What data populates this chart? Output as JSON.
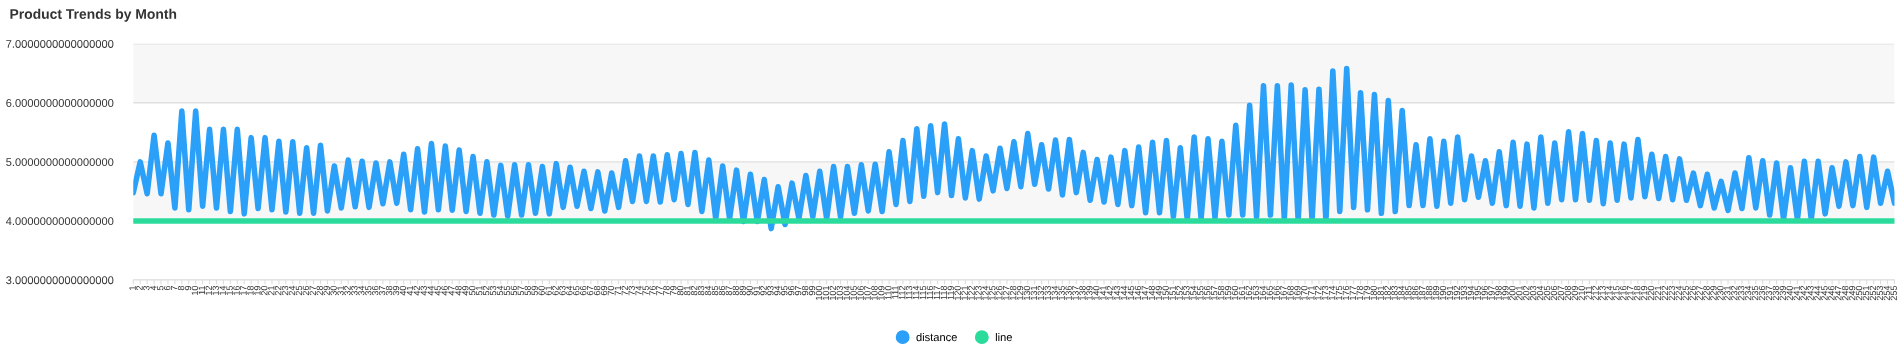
{
  "chart_data": {
    "type": "line",
    "title": "Product Trends by Month",
    "categories": [
      "1",
      "2",
      "3",
      "4",
      "5",
      "6",
      "7",
      "8",
      "9",
      "10",
      "11",
      "12",
      "13",
      "14",
      "15",
      "16",
      "17",
      "18",
      "19",
      "20",
      "21",
      "22",
      "23",
      "24",
      "25",
      "26",
      "27",
      "28",
      "29",
      "30",
      "31",
      "32",
      "33",
      "34",
      "35",
      "36",
      "37",
      "38",
      "39",
      "40",
      "41",
      "42",
      "43",
      "44",
      "45",
      "46",
      "47",
      "48",
      "49",
      "50",
      "51",
      "52",
      "53",
      "54",
      "55",
      "56",
      "57",
      "58",
      "59",
      "60",
      "61",
      "62",
      "63",
      "64",
      "65",
      "66",
      "67",
      "68",
      "69",
      "70",
      "71",
      "72",
      "73",
      "74",
      "75",
      "76",
      "77",
      "78",
      "79",
      "80",
      "81",
      "82",
      "83",
      "84",
      "85",
      "86",
      "87",
      "88",
      "89",
      "90",
      "91",
      "92",
      "93",
      "94",
      "95",
      "96",
      "97",
      "98",
      "99",
      "100",
      "101",
      "102",
      "103",
      "104",
      "105",
      "106",
      "107",
      "108",
      "109",
      "110",
      "111",
      "112",
      "113",
      "114",
      "115",
      "116",
      "117",
      "118",
      "119",
      "120",
      "121",
      "122",
      "123",
      "124",
      "125",
      "126",
      "127",
      "128",
      "129",
      "130",
      "131",
      "132",
      "133",
      "134",
      "135",
      "136",
      "137",
      "138",
      "139",
      "140",
      "141",
      "142",
      "143",
      "144",
      "145",
      "146",
      "147",
      "148",
      "149",
      "150",
      "151",
      "152",
      "153",
      "154",
      "155",
      "156",
      "157",
      "158",
      "159",
      "160",
      "161",
      "162",
      "163",
      "164",
      "165",
      "166",
      "167",
      "168",
      "169",
      "170",
      "171",
      "172",
      "173",
      "174",
      "175",
      "176",
      "177",
      "178",
      "179",
      "180",
      "181",
      "182",
      "183",
      "184",
      "185",
      "186",
      "187",
      "188",
      "189",
      "190",
      "191",
      "192",
      "193",
      "194",
      "195",
      "196",
      "197",
      "198",
      "199",
      "200",
      "201",
      "202",
      "203",
      "204",
      "205",
      "206",
      "207",
      "208",
      "209",
      "210",
      "211",
      "212",
      "213",
      "214",
      "215",
      "216",
      "217",
      "218",
      "219",
      "220",
      "221",
      "222",
      "223",
      "224",
      "225",
      "226",
      "227",
      "228",
      "229",
      "230",
      "231",
      "232",
      "233",
      "234",
      "235",
      "236",
      "237",
      "238",
      "239",
      "240",
      "241",
      "242",
      "243",
      "244",
      "245",
      "246",
      "247",
      "248",
      "249",
      "250",
      "251",
      "252",
      "253",
      "254",
      "255"
    ],
    "series": [
      {
        "name": "distance",
        "color": "#2ba0f8",
        "values": [
          4.48,
          5.0,
          4.46,
          5.45,
          4.46,
          5.32,
          4.22,
          5.86,
          4.19,
          5.86,
          4.25,
          5.55,
          4.22,
          5.55,
          4.16,
          5.55,
          4.12,
          5.41,
          4.21,
          5.41,
          4.19,
          5.35,
          4.15,
          5.34,
          4.13,
          5.24,
          4.13,
          5.28,
          4.17,
          4.93,
          4.22,
          5.03,
          4.24,
          5.01,
          4.23,
          4.98,
          4.29,
          5.0,
          4.3,
          5.13,
          4.19,
          5.22,
          4.15,
          5.31,
          4.19,
          5.27,
          4.18,
          5.2,
          4.16,
          5.09,
          4.13,
          5.0,
          4.1,
          4.94,
          4.08,
          4.95,
          4.1,
          4.95,
          4.13,
          4.92,
          4.12,
          4.97,
          4.23,
          4.91,
          4.25,
          4.84,
          4.21,
          4.83,
          4.17,
          4.81,
          4.23,
          5.02,
          4.33,
          5.1,
          4.33,
          5.1,
          4.32,
          5.12,
          4.36,
          5.14,
          4.28,
          5.16,
          4.16,
          5.03,
          4.04,
          4.93,
          4.04,
          4.86,
          3.99,
          4.79,
          3.99,
          4.7,
          3.87,
          4.58,
          3.94,
          4.64,
          4.04,
          4.77,
          4.07,
          4.84,
          4.04,
          4.92,
          4.07,
          4.92,
          4.13,
          4.95,
          4.17,
          4.96,
          4.16,
          5.17,
          4.28,
          5.36,
          4.33,
          5.56,
          4.42,
          5.61,
          4.48,
          5.64,
          4.43,
          5.39,
          4.39,
          5.19,
          4.37,
          5.1,
          4.51,
          5.23,
          4.55,
          5.34,
          4.58,
          5.48,
          4.62,
          5.29,
          4.54,
          5.37,
          4.44,
          5.38,
          4.48,
          5.16,
          4.35,
          5.04,
          4.32,
          5.08,
          4.28,
          5.19,
          4.26,
          5.25,
          4.14,
          5.33,
          4.14,
          5.36,
          4.07,
          5.24,
          4.03,
          5.42,
          4.04,
          5.39,
          4.06,
          5.35,
          4.1,
          5.62,
          4.1,
          5.96,
          4.07,
          6.29,
          4.1,
          6.29,
          4.04,
          6.3,
          4.01,
          6.22,
          4.01,
          6.23,
          4.01,
          6.54,
          4.16,
          6.58,
          4.23,
          6.17,
          4.19,
          6.14,
          4.13,
          6.04,
          4.16,
          5.87,
          4.26,
          5.29,
          4.26,
          5.39,
          4.25,
          5.35,
          4.3,
          5.42,
          4.36,
          5.1,
          4.4,
          5.02,
          4.3,
          5.17,
          4.26,
          5.33,
          4.25,
          5.3,
          4.22,
          5.42,
          4.3,
          5.32,
          4.36,
          5.51,
          4.36,
          5.48,
          4.35,
          5.36,
          4.29,
          5.32,
          4.35,
          5.3,
          4.39,
          5.38,
          4.41,
          5.13,
          4.38,
          5.09,
          4.36,
          5.05,
          4.35,
          4.81,
          4.26,
          4.79,
          4.22,
          4.67,
          4.18,
          4.81,
          4.21,
          5.07,
          4.22,
          5.02,
          4.1,
          4.98,
          4.03,
          4.9,
          4.03,
          5.01,
          4.03,
          5.01,
          4.12,
          4.9,
          4.25,
          5.0,
          4.26,
          5.09,
          4.23,
          5.08,
          4.3,
          4.84,
          4.3
        ]
      },
      {
        "name": "line",
        "color": "#2bdb9b",
        "values": [
          4,
          4,
          4,
          4,
          4,
          4,
          4,
          4,
          4,
          4,
          4,
          4,
          4,
          4,
          4,
          4,
          4,
          4,
          4,
          4,
          4,
          4,
          4,
          4,
          4,
          4,
          4,
          4,
          4,
          4,
          4,
          4,
          4,
          4,
          4,
          4,
          4,
          4,
          4,
          4,
          4,
          4,
          4,
          4,
          4,
          4,
          4,
          4,
          4,
          4,
          4,
          4,
          4,
          4,
          4,
          4,
          4,
          4,
          4,
          4,
          4,
          4,
          4,
          4,
          4,
          4,
          4,
          4,
          4,
          4,
          4,
          4,
          4,
          4,
          4,
          4,
          4,
          4,
          4,
          4,
          4,
          4,
          4,
          4,
          4,
          4,
          4,
          4,
          4,
          4,
          4,
          4,
          4,
          4,
          4,
          4,
          4,
          4,
          4,
          4,
          4,
          4,
          4,
          4,
          4,
          4,
          4,
          4,
          4,
          4,
          4,
          4,
          4,
          4,
          4,
          4,
          4,
          4,
          4,
          4,
          4,
          4,
          4,
          4,
          4,
          4,
          4,
          4,
          4,
          4,
          4,
          4,
          4,
          4,
          4,
          4,
          4,
          4,
          4,
          4,
          4,
          4,
          4,
          4,
          4,
          4,
          4,
          4,
          4,
          4,
          4,
          4,
          4,
          4,
          4,
          4,
          4,
          4,
          4,
          4,
          4,
          4,
          4,
          4,
          4,
          4,
          4,
          4,
          4,
          4,
          4,
          4,
          4,
          4,
          4,
          4,
          4,
          4,
          4,
          4,
          4,
          4,
          4,
          4,
          4,
          4,
          4,
          4,
          4,
          4,
          4,
          4,
          4,
          4,
          4,
          4,
          4,
          4,
          4,
          4,
          4,
          4,
          4,
          4,
          4,
          4,
          4,
          4,
          4,
          4,
          4,
          4,
          4,
          4,
          4,
          4,
          4,
          4,
          4,
          4,
          4,
          4,
          4,
          4,
          4,
          4,
          4,
          4,
          4,
          4,
          4,
          4,
          4,
          4,
          4,
          4,
          4,
          4,
          4,
          4,
          4,
          4,
          4,
          4,
          4,
          4,
          4,
          4,
          4,
          4,
          4,
          4,
          4,
          4,
          4
        ]
      }
    ],
    "ylim": [
      3,
      7
    ],
    "yticks": [
      {
        "value": 3,
        "label": "3.0000000000000000"
      },
      {
        "value": 4,
        "label": "4.0000000000000000"
      },
      {
        "value": 5,
        "label": "5.0000000000000000"
      },
      {
        "value": 6,
        "label": "6.0000000000000000"
      },
      {
        "value": 7,
        "label": "7.0000000000000000"
      }
    ],
    "bands": [
      {
        "axis": "y",
        "from": 4,
        "to": 5,
        "color": "#f7f7f7"
      },
      {
        "axis": "y",
        "from": 6,
        "to": 7,
        "color": "#f7f7f7"
      }
    ],
    "grid": "y",
    "legend": "bottom",
    "marker": "none",
    "line_style": "solid"
  }
}
